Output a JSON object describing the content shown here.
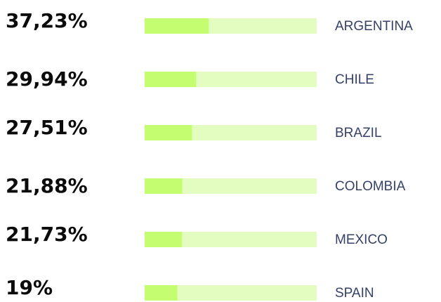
{
  "chart_data": {
    "type": "bar",
    "categories": [
      "ARGENTINA",
      "CHILE",
      "BRAZIL",
      "COLOMBIA",
      "MEXICO",
      "SPAIN"
    ],
    "values": [
      37.23,
      29.94,
      27.51,
      21.88,
      21.73,
      19
    ],
    "value_labels": [
      "37,23%",
      "29,94%",
      "27,51%",
      "21,88%",
      "21,73%",
      "19%"
    ],
    "color": "#c4fd70",
    "track_color": "#e3fdc1",
    "xlim": [
      0,
      100
    ]
  }
}
